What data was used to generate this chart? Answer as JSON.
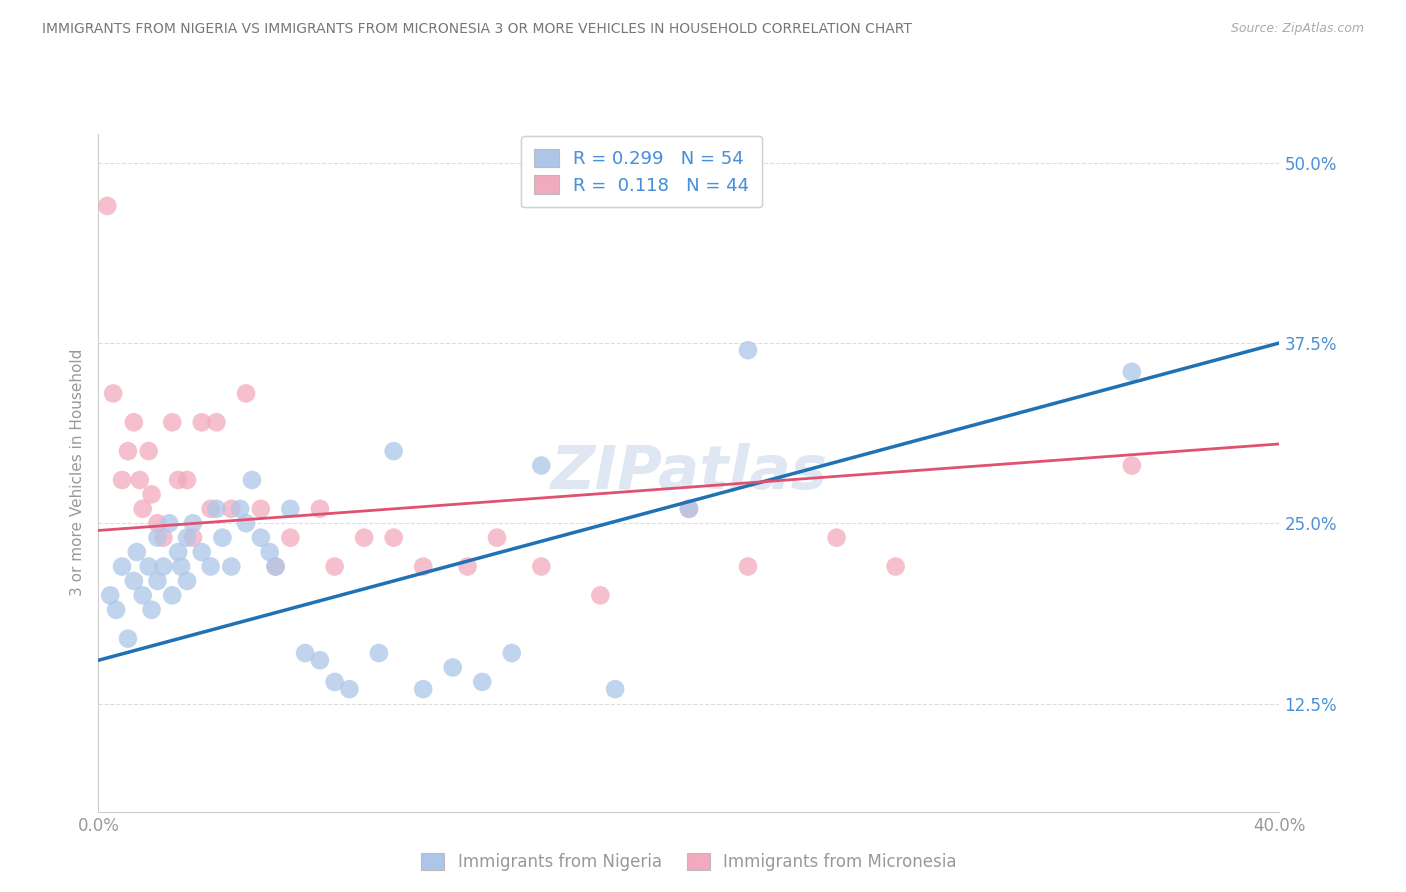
{
  "title": "IMMIGRANTS FROM NIGERIA VS IMMIGRANTS FROM MICRONESIA 3 OR MORE VEHICLES IN HOUSEHOLD CORRELATION CHART",
  "source": "Source: ZipAtlas.com",
  "ylabel": "3 or more Vehicles in Household",
  "xmin": 0.0,
  "xmax": 40.0,
  "ymin": 5.0,
  "ymax": 52.0,
  "yticks": [
    12.5,
    25.0,
    37.5,
    50.0
  ],
  "blue_R": 0.299,
  "blue_N": 54,
  "pink_R": 0.118,
  "pink_N": 44,
  "blue_color": "#adc6e8",
  "pink_color": "#f2aabe",
  "blue_line_color": "#2171b5",
  "pink_line_color": "#e05070",
  "legend_text_color": "#4a90d9",
  "title_color": "#777777",
  "source_color": "#aaaaaa",
  "background_color": "#ffffff",
  "grid_color": "#dddddd",
  "watermark": "ZIPatlas",
  "blue_line_x0": 0.0,
  "blue_line_y0": 15.5,
  "blue_line_x1": 40.0,
  "blue_line_y1": 37.5,
  "pink_line_x0": 0.0,
  "pink_line_y0": 24.5,
  "pink_line_x1": 40.0,
  "pink_line_y1": 30.5,
  "blue_x": [
    0.4,
    0.6,
    0.8,
    1.0,
    1.2,
    1.3,
    1.5,
    1.7,
    1.8,
    2.0,
    2.0,
    2.2,
    2.4,
    2.5,
    2.7,
    2.8,
    3.0,
    3.0,
    3.2,
    3.5,
    3.8,
    4.0,
    4.2,
    4.5,
    4.8,
    5.0,
    5.2,
    5.5,
    5.8,
    6.0,
    6.5,
    7.0,
    7.5,
    8.0,
    8.5,
    9.5,
    10.0,
    11.0,
    12.0,
    13.0,
    14.0,
    15.0,
    17.5,
    20.0,
    22.0,
    35.0
  ],
  "blue_y": [
    20.0,
    19.0,
    22.0,
    17.0,
    21.0,
    23.0,
    20.0,
    22.0,
    19.0,
    21.0,
    24.0,
    22.0,
    25.0,
    20.0,
    23.0,
    22.0,
    24.0,
    21.0,
    25.0,
    23.0,
    22.0,
    26.0,
    24.0,
    22.0,
    26.0,
    25.0,
    28.0,
    24.0,
    23.0,
    22.0,
    26.0,
    16.0,
    15.5,
    14.0,
    13.5,
    16.0,
    30.0,
    13.5,
    15.0,
    14.0,
    16.0,
    29.0,
    13.5,
    26.0,
    37.0,
    35.5
  ],
  "pink_x": [
    0.3,
    0.5,
    0.8,
    1.0,
    1.2,
    1.4,
    1.5,
    1.7,
    1.8,
    2.0,
    2.2,
    2.5,
    2.7,
    3.0,
    3.2,
    3.5,
    3.8,
    4.0,
    4.5,
    5.0,
    5.5,
    6.0,
    6.5,
    7.5,
    8.0,
    9.0,
    10.0,
    11.0,
    12.5,
    13.5,
    15.0,
    17.0,
    20.0,
    22.0,
    25.0,
    27.0,
    35.0
  ],
  "pink_y": [
    47.0,
    34.0,
    28.0,
    30.0,
    32.0,
    28.0,
    26.0,
    30.0,
    27.0,
    25.0,
    24.0,
    32.0,
    28.0,
    28.0,
    24.0,
    32.0,
    26.0,
    32.0,
    26.0,
    34.0,
    26.0,
    22.0,
    24.0,
    26.0,
    22.0,
    24.0,
    24.0,
    22.0,
    22.0,
    24.0,
    22.0,
    20.0,
    26.0,
    22.0,
    24.0,
    22.0,
    29.0
  ]
}
